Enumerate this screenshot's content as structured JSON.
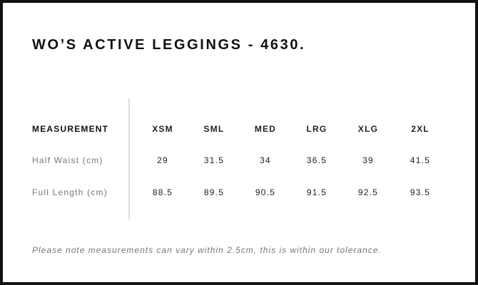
{
  "title": "WO’S ACTIVE LEGGINGS - 4630.",
  "table": {
    "header_label": "MEASUREMENT",
    "sizes": [
      "XSM",
      "SML",
      "MED",
      "LRG",
      "XLG",
      "2XL"
    ],
    "rows": [
      {
        "label": "Half Waist (cm)",
        "values": [
          "29",
          "31.5",
          "34",
          "36.5",
          "39",
          "41.5"
        ]
      },
      {
        "label": "Full Length (cm)",
        "values": [
          "88.5",
          "89.5",
          "90.5",
          "91.5",
          "92.5",
          "93.5"
        ]
      }
    ]
  },
  "note": "Please note measurements can vary within 2.5cm, this is within our tolerance."
}
